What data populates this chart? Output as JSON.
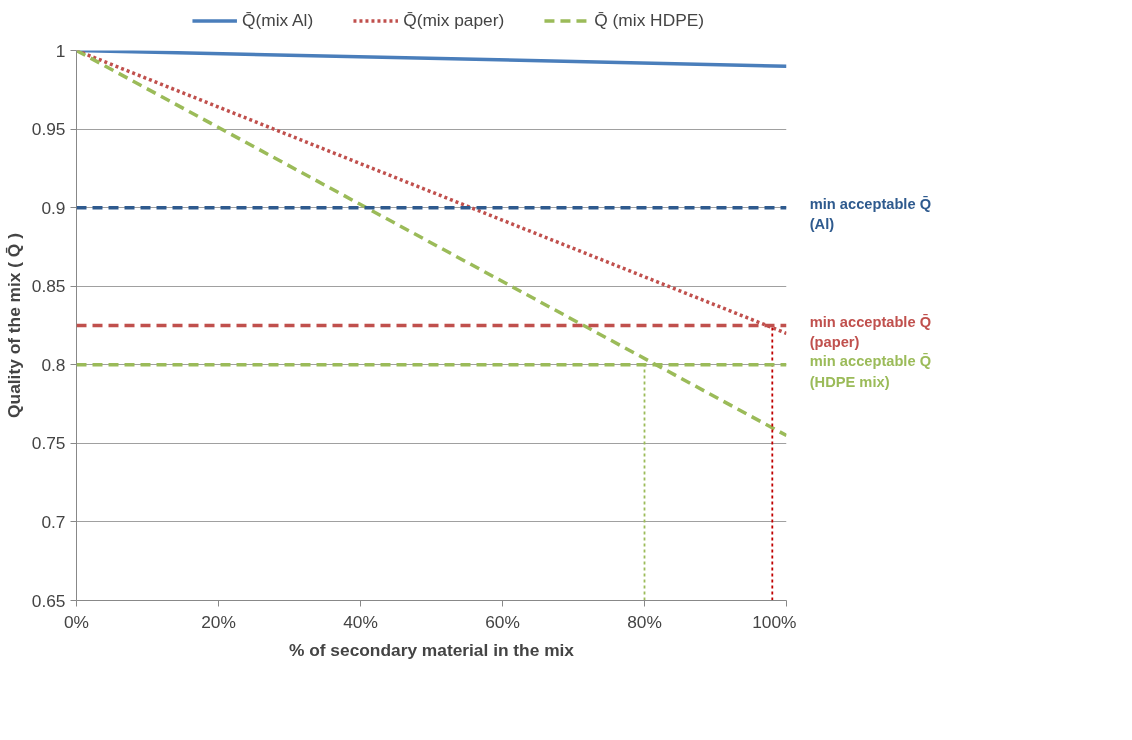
{
  "chart_data": {
    "type": "line",
    "xlabel": "% of secondary material in the mix",
    "ylabel": "Quality of the mix ( Q̄ )",
    "xlim": [
      0,
      100
    ],
    "ylim": [
      0.65,
      1
    ],
    "xticks": [
      {
        "value": 0,
        "label": "0%"
      },
      {
        "value": 20,
        "label": "20%"
      },
      {
        "value": 40,
        "label": "40%"
      },
      {
        "value": 60,
        "label": "60%"
      },
      {
        "value": 80,
        "label": "80%"
      },
      {
        "value": 100,
        "label": "100%"
      }
    ],
    "yticks": [
      0.65,
      0.7,
      0.75,
      0.8,
      0.85,
      0.9,
      0.95,
      1
    ],
    "grid": "y",
    "legend": "top",
    "marker": "none",
    "series": [
      {
        "name": "Q̄(mix Al)",
        "color": "#4a7ebb",
        "x": [
          0,
          100
        ],
        "values": [
          1,
          0.99
        ],
        "line_style": "solid"
      },
      {
        "name": "Q̄(mix paper)",
        "color": "#c0504d",
        "x": [
          0,
          100
        ],
        "values": [
          1,
          0.82
        ],
        "line_style": "dotted"
      },
      {
        "name": "Q̄ (mix HDPE)",
        "color": "#9bbb59",
        "x": [
          0,
          100
        ],
        "values": [
          1,
          0.755
        ],
        "line_style": "dashed"
      },
      {
        "color": "#9bbb59",
        "x": [
          80,
          80
        ],
        "values": [
          0.65,
          0.8
        ],
        "line_style": "dotted"
      },
      {
        "color": "#c00000",
        "x": [
          98,
          98
        ],
        "values": [
          0.65,
          0.825
        ],
        "line_style": "dotted"
      }
    ],
    "ref_lines": [
      {
        "axis": "y",
        "value": 0.9,
        "label": "min acceptable Q̄\n(Al)",
        "color": "#2e5a8e",
        "line_style": "dashed"
      },
      {
        "axis": "y",
        "value": 0.825,
        "label": "min acceptable Q̄\n(paper)",
        "color": "#c0504d",
        "line_style": "dashed"
      },
      {
        "axis": "y",
        "value": 0.8,
        "label": "min acceptable Q̄\n(HDPE mix)",
        "color": "#9bbb59",
        "line_style": "dashed"
      }
    ]
  }
}
